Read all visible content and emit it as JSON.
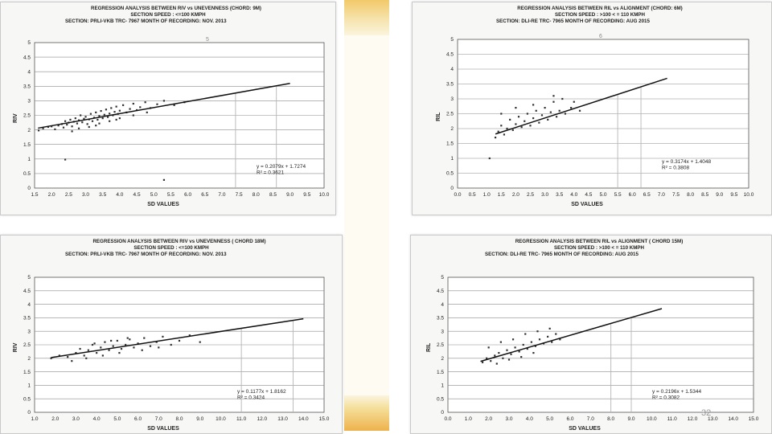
{
  "page_number": "32",
  "chart_data": [
    {
      "type": "scatter",
      "header": [
        "REGRESSION ANALYSIS BETWEEN RIV vs UNEVENNESS (CHORD: 9M)",
        "SECTION SPEED : <=100 KMPH",
        "SECTION: PRLI-VKB TRC- 7967     MONTH OF RECORDING: NOV. 2013"
      ],
      "top_mark": "5",
      "xlabel": "SD VALUES",
      "ylabel": "RIV",
      "xlim": [
        1.5,
        10.0
      ],
      "ylim": [
        0,
        5
      ],
      "xticks": [
        "1.5",
        "2.0",
        "2.5",
        "3.0",
        "3.5",
        "4.0",
        "4.5",
        "5.0",
        "5.5",
        "6.0",
        "6.5",
        "7.0",
        "7.5",
        "8.0",
        "8.5",
        "9.0",
        "9.5",
        "10.0"
      ],
      "yticks": [
        "0",
        "0.5",
        "1",
        "1.5",
        "2",
        "2.5",
        "3",
        "3.5",
        "4",
        "4.5",
        "5"
      ],
      "equation": [
        "y = 0.2079x + 1.7274",
        "R² = 0.3621"
      ],
      "slope": 0.2079,
      "intercept": 1.7274,
      "line_x": [
        1.6,
        9.0
      ],
      "guides": [
        7.4,
        8.6
      ],
      "points": [
        [
          1.62,
          1.98
        ],
        [
          1.75,
          2.05
        ],
        [
          1.9,
          2.1
        ],
        [
          2.0,
          2.12
        ],
        [
          2.1,
          2.02
        ],
        [
          2.2,
          2.15
        ],
        [
          2.3,
          2.2
        ],
        [
          2.35,
          2.08
        ],
        [
          2.4,
          2.3
        ],
        [
          2.45,
          2.18
        ],
        [
          2.5,
          2.25
        ],
        [
          2.55,
          2.35
        ],
        [
          2.6,
          2.12
        ],
        [
          2.65,
          2.28
        ],
        [
          2.7,
          2.4
        ],
        [
          2.75,
          2.22
        ],
        [
          2.8,
          2.33
        ],
        [
          2.85,
          2.5
        ],
        [
          2.9,
          2.26
        ],
        [
          2.95,
          2.38
        ],
        [
          3.0,
          2.45
        ],
        [
          3.05,
          2.2
        ],
        [
          3.1,
          2.36
        ],
        [
          3.15,
          2.55
        ],
        [
          3.2,
          2.3
        ],
        [
          3.25,
          2.42
        ],
        [
          3.3,
          2.6
        ],
        [
          3.35,
          2.35
        ],
        [
          3.4,
          2.48
        ],
        [
          3.45,
          2.65
        ],
        [
          3.5,
          2.4
        ],
        [
          3.55,
          2.52
        ],
        [
          3.6,
          2.7
        ],
        [
          3.65,
          2.44
        ],
        [
          3.7,
          2.56
        ],
        [
          3.75,
          2.75
        ],
        [
          3.8,
          2.5
        ],
        [
          3.85,
          2.62
        ],
        [
          3.9,
          2.8
        ],
        [
          3.95,
          2.55
        ],
        [
          4.0,
          2.66
        ],
        [
          4.1,
          2.85
        ],
        [
          4.2,
          2.6
        ],
        [
          4.3,
          2.72
        ],
        [
          4.4,
          2.9
        ],
        [
          4.5,
          2.68
        ],
        [
          4.6,
          2.78
        ],
        [
          4.75,
          2.95
        ],
        [
          4.9,
          2.75
        ],
        [
          5.1,
          2.88
        ],
        [
          5.3,
          3.0
        ],
        [
          5.6,
          2.85
        ],
        [
          5.9,
          2.95
        ],
        [
          2.4,
          0.98
        ],
        [
          5.3,
          0.28
        ],
        [
          2.8,
          2.05
        ],
        [
          3.1,
          2.1
        ],
        [
          3.4,
          2.22
        ],
        [
          3.7,
          2.3
        ],
        [
          4.0,
          2.4
        ],
        [
          2.6,
          1.95
        ],
        [
          3.3,
          2.15
        ],
        [
          3.9,
          2.35
        ],
        [
          4.4,
          2.5
        ],
        [
          4.8,
          2.6
        ]
      ]
    },
    {
      "type": "scatter",
      "header": [
        "REGRESSION ANALYSIS BETWEEN RIL vs ALIGNMENT (CHORD: 6M)",
        "SECTION SPEED : >100 < = 110 KMPH",
        "SECTION: DLI-RE TRC- 7965     MONTH OF RECORDING: AUG 2015"
      ],
      "top_mark": "6",
      "xlabel": "SD VALUES",
      "ylabel": "RIL",
      "xlim": [
        0.0,
        10.0
      ],
      "ylim": [
        0,
        5
      ],
      "xticks": [
        "0.0",
        "0.5",
        "1.0",
        "1.5",
        "2.0",
        "2.5",
        "3.0",
        "3.5",
        "4.0",
        "4.5",
        "5.0",
        "5.5",
        "6.0",
        "6.5",
        "7.0",
        "7.5",
        "8.0",
        "8.5",
        "9.0",
        "9.5",
        "10.0"
      ],
      "yticks": [
        "0",
        "0.5",
        "1",
        "1.5",
        "2",
        "2.5",
        "3",
        "3.5",
        "4",
        "4.5",
        "5"
      ],
      "equation": [
        "y = 0.3174x + 1.4048",
        "R² = 0.3808"
      ],
      "slope": 0.3174,
      "intercept": 1.4048,
      "line_x": [
        1.3,
        7.2
      ],
      "guides": [
        5.5,
        6.3
      ],
      "points": [
        [
          1.3,
          1.7
        ],
        [
          1.4,
          1.9
        ],
        [
          1.5,
          2.1
        ],
        [
          1.6,
          1.8
        ],
        [
          1.7,
          2.0
        ],
        [
          1.8,
          2.3
        ],
        [
          1.9,
          1.95
        ],
        [
          2.0,
          2.15
        ],
        [
          2.1,
          2.4
        ],
        [
          2.2,
          2.05
        ],
        [
          2.3,
          2.25
        ],
        [
          2.4,
          2.5
        ],
        [
          2.5,
          2.1
        ],
        [
          2.6,
          2.35
        ],
        [
          2.7,
          2.6
        ],
        [
          2.8,
          2.2
        ],
        [
          2.9,
          2.45
        ],
        [
          3.0,
          2.7
        ],
        [
          3.1,
          2.3
        ],
        [
          3.2,
          2.55
        ],
        [
          3.3,
          2.9
        ],
        [
          3.4,
          2.4
        ],
        [
          3.5,
          2.6
        ],
        [
          3.6,
          3.0
        ],
        [
          3.7,
          2.5
        ],
        [
          3.9,
          2.7
        ],
        [
          4.0,
          2.9
        ],
        [
          4.2,
          2.6
        ],
        [
          1.1,
          1.0
        ],
        [
          1.5,
          2.5
        ],
        [
          2.0,
          2.7
        ],
        [
          2.6,
          2.8
        ],
        [
          3.3,
          3.1
        ]
      ]
    },
    {
      "type": "scatter",
      "header": [
        "REGRESSION ANALYSIS BETWEEN  RIV vs UNEVENNESS ( CHORD 18M)",
        "SECTION SPEED : <=100 KMPH",
        "SECTION: PRLI-VKB TRC- 7967     MONTH OF RECORDING: NOV. 2013"
      ],
      "top_mark": "",
      "xlabel": "SD VALUES",
      "ylabel": "RIV",
      "xlim": [
        1.0,
        15.0
      ],
      "ylim": [
        0,
        5
      ],
      "xticks": [
        "1.0",
        "2.0",
        "3.0",
        "4.0",
        "5.0",
        "6.0",
        "7.0",
        "8.0",
        "9.0",
        "10.0",
        "11.0",
        "12.0",
        "13.0",
        "14.0",
        "15.0"
      ],
      "yticks": [
        "0",
        "0.5",
        "1",
        "1.5",
        "2",
        "2.5",
        "3",
        "3.5",
        "4",
        "4.5",
        "5"
      ],
      "equation": [
        "y = 0.1177x + 1.8162",
        "R² = 0.3424"
      ],
      "slope": 0.1177,
      "intercept": 1.8162,
      "line_x": [
        1.8,
        14.0
      ],
      "guides": [
        11.0,
        13.5
      ],
      "points": [
        [
          1.8,
          2.0
        ],
        [
          2.2,
          2.1
        ],
        [
          2.6,
          2.05
        ],
        [
          3.0,
          2.2
        ],
        [
          3.2,
          2.35
        ],
        [
          3.4,
          2.1
        ],
        [
          3.6,
          2.3
        ],
        [
          3.8,
          2.5
        ],
        [
          4.0,
          2.2
        ],
        [
          4.2,
          2.4
        ],
        [
          4.4,
          2.6
        ],
        [
          4.6,
          2.3
        ],
        [
          4.8,
          2.45
        ],
        [
          5.0,
          2.65
        ],
        [
          5.2,
          2.35
        ],
        [
          5.4,
          2.5
        ],
        [
          5.6,
          2.7
        ],
        [
          5.8,
          2.4
        ],
        [
          6.0,
          2.55
        ],
        [
          6.3,
          2.75
        ],
        [
          6.6,
          2.45
        ],
        [
          6.9,
          2.6
        ],
        [
          7.2,
          2.8
        ],
        [
          7.6,
          2.5
        ],
        [
          8.0,
          2.65
        ],
        [
          8.5,
          2.85
        ],
        [
          9.0,
          2.6
        ],
        [
          2.8,
          1.9
        ],
        [
          3.5,
          2.0
        ],
        [
          4.3,
          2.1
        ],
        [
          5.1,
          2.2
        ],
        [
          6.2,
          2.3
        ],
        [
          7.0,
          2.4
        ],
        [
          3.9,
          2.55
        ],
        [
          4.7,
          2.65
        ],
        [
          5.5,
          2.75
        ]
      ]
    },
    {
      "type": "scatter",
      "header": [
        "REGRESSION ANALYSIS BETWEEN RIL vs ALIGNMENT ( CHORD 15M)",
        "SECTION SPEED : >100 < = 110 KMPH",
        "SECTION: DLI-RE TRC- 7965     MONTH OF RECORDING: AUG 2015"
      ],
      "top_mark": "",
      "xlabel": "SD VALUES",
      "ylabel": "RIL",
      "xlim": [
        0.0,
        15.0
      ],
      "ylim": [
        0,
        5
      ],
      "xticks": [
        "0.0",
        "1.0",
        "2.0",
        "3.0",
        "4.0",
        "5.0",
        "6.0",
        "7.0",
        "8.0",
        "9.0",
        "10.0",
        "11.0",
        "12.0",
        "13.0",
        "14.0",
        "15.0"
      ],
      "yticks": [
        "0",
        "0.5",
        "1",
        "1.5",
        "2",
        "2.5",
        "3",
        "3.5",
        "4",
        "4.5",
        "5"
      ],
      "equation": [
        "y = 0.2196x + 1.5344",
        "R² = 0.3082"
      ],
      "slope": 0.2196,
      "intercept": 1.5344,
      "line_x": [
        1.6,
        10.5
      ],
      "guides": [
        8.0,
        9.0
      ],
      "points": [
        [
          1.7,
          1.85
        ],
        [
          1.9,
          2.0
        ],
        [
          2.1,
          1.9
        ],
        [
          2.3,
          2.1
        ],
        [
          2.5,
          2.2
        ],
        [
          2.7,
          2.0
        ],
        [
          2.9,
          2.3
        ],
        [
          3.1,
          2.15
        ],
        [
          3.3,
          2.4
        ],
        [
          3.5,
          2.25
        ],
        [
          3.7,
          2.5
        ],
        [
          3.9,
          2.35
        ],
        [
          4.1,
          2.6
        ],
        [
          4.3,
          2.45
        ],
        [
          4.5,
          2.7
        ],
        [
          4.7,
          2.55
        ],
        [
          4.9,
          2.8
        ],
        [
          5.1,
          2.6
        ],
        [
          5.3,
          2.9
        ],
        [
          5.5,
          2.7
        ],
        [
          2.0,
          2.4
        ],
        [
          2.6,
          2.6
        ],
        [
          3.2,
          2.7
        ],
        [
          3.8,
          2.9
        ],
        [
          4.4,
          3.0
        ],
        [
          5.0,
          3.1
        ],
        [
          2.4,
          1.8
        ],
        [
          3.0,
          1.95
        ],
        [
          3.6,
          2.05
        ],
        [
          4.2,
          2.2
        ]
      ]
    }
  ]
}
